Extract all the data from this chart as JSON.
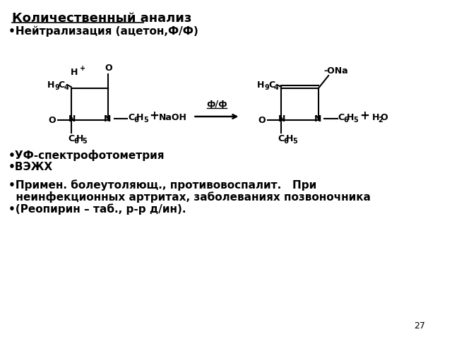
{
  "title": "Количественный анализ",
  "bullet1": "•Нейтрализация (ацетон,Ф/Ф)",
  "bullet2": "•УФ-спектрофотометрия",
  "bullet3": "•ВЭЖХ",
  "bullet4_line1": "•Примен. болеутоляющ., противовоспалит.   При",
  "bullet4_line2": "  неинфекционных артритах, заболеваниях позвоночника",
  "bullet5": "•(Реопирин – таб., р-р д/ин).",
  "page_num": "27",
  "bg_color": "#ffffff",
  "text_color": "#000000",
  "font_size_title": 13,
  "font_size_bullet": 11,
  "font_size_chem": 9,
  "font_size_sub": 7
}
